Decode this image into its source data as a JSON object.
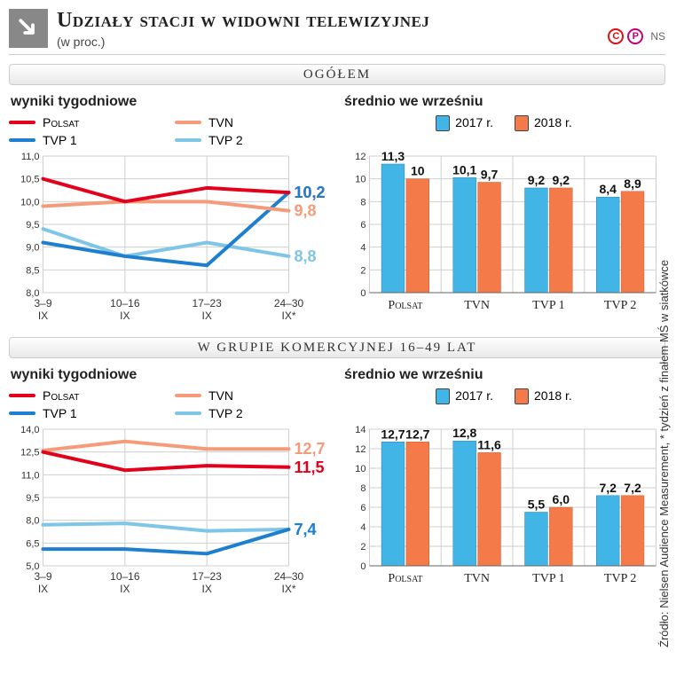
{
  "title": "Udziały stacji w widowni telewizyjnej",
  "subtitle": "(w proc.)",
  "badges": {
    "c": "C",
    "p": "P",
    "ns": "NS",
    "c_bg": "#ffffff",
    "c_border": "#d11",
    "c_color": "#d11",
    "p_bg": "#ffffff",
    "p_border": "#c4007a",
    "p_color": "#c4007a"
  },
  "source": "Źródło: Nielsen Audience Measurement, * tydzień z finałem MŚ w siatkówce",
  "ribbons": {
    "ogolem": "OGÓŁEM",
    "komerc": "W GRUPIE KOMERCYJNEJ 16–49 LAT"
  },
  "labels": {
    "weekly": "wyniki tygodniowe",
    "avg": "średnio we wrześniu",
    "year1": "2017 r.",
    "year2": "2018 r."
  },
  "colors": {
    "polsat": "#e3001b",
    "tvn": "#f59b7a",
    "tvp1": "#1f7fcf",
    "tvp2": "#7ec5e8",
    "bar2017": "#41b6e6",
    "bar2018": "#f47b49",
    "grid": "#cfcfcf",
    "axis": "#999",
    "bg": "#ffffff"
  },
  "series_labels": {
    "polsat": "Polsat",
    "tvn": "TVN",
    "tvp1": "TVP 1",
    "tvp2": "TVP 2"
  },
  "weeks": [
    "3–9\nIX",
    "10–16\nIX",
    "17–23\nIX",
    "24–30\nIX*"
  ],
  "ogolem_line": {
    "ylim": [
      8.0,
      11.0
    ],
    "ytick_step": 0.5,
    "data": {
      "polsat": [
        10.5,
        10.0,
        10.3,
        10.2
      ],
      "tvn": [
        9.9,
        10.0,
        10.0,
        9.8
      ],
      "tvp1": [
        9.1,
        8.8,
        8.6,
        10.2
      ],
      "tvp2": [
        9.4,
        8.8,
        9.1,
        8.8
      ]
    },
    "end_labels": {
      "polsat": "10,2",
      "tvp1": "10,2",
      "tvn": "9,8",
      "tvp2": "8,8"
    }
  },
  "ogolem_bar": {
    "ylim": [
      0,
      12
    ],
    "ytick_step": 2,
    "categories": [
      "Polsat",
      "TVN",
      "TVP 1",
      "TVP 2"
    ],
    "y2017": [
      11.3,
      10.1,
      9.2,
      8.4
    ],
    "y2018": [
      10.0,
      9.7,
      9.2,
      8.9
    ],
    "labels2017": [
      "11,3",
      "10,1",
      "9,2",
      "8,4"
    ],
    "labels2018": [
      "10",
      "9,7",
      "9,2",
      "8,9"
    ]
  },
  "komerc_line": {
    "ylim": [
      5.0,
      14.0
    ],
    "ytick_step": 1.5,
    "data": {
      "tvn": [
        12.6,
        13.2,
        12.7,
        12.7
      ],
      "polsat": [
        12.5,
        11.3,
        11.6,
        11.5
      ],
      "tvp2": [
        7.7,
        7.8,
        7.3,
        7.4
      ],
      "tvp1": [
        6.1,
        6.1,
        5.8,
        7.4
      ]
    },
    "end_labels": {
      "tvn": "12,7",
      "polsat": "11,5",
      "tvp2": "7,4",
      "tvp1": "7,4"
    }
  },
  "komerc_bar": {
    "ylim": [
      0,
      14
    ],
    "ytick_step": 2,
    "categories": [
      "Polsat",
      "TVN",
      "TVP 1",
      "TVP 2"
    ],
    "y2017": [
      12.7,
      12.8,
      5.5,
      7.2
    ],
    "y2018": [
      12.7,
      11.6,
      6.0,
      7.2
    ],
    "labels2017": [
      "12,7",
      "12,8",
      "5,5",
      "7,2"
    ],
    "labels2018": [
      "12,7",
      "11,6",
      "6,0",
      "7,2"
    ]
  },
  "bar_width": 0.32,
  "line_width": 4
}
